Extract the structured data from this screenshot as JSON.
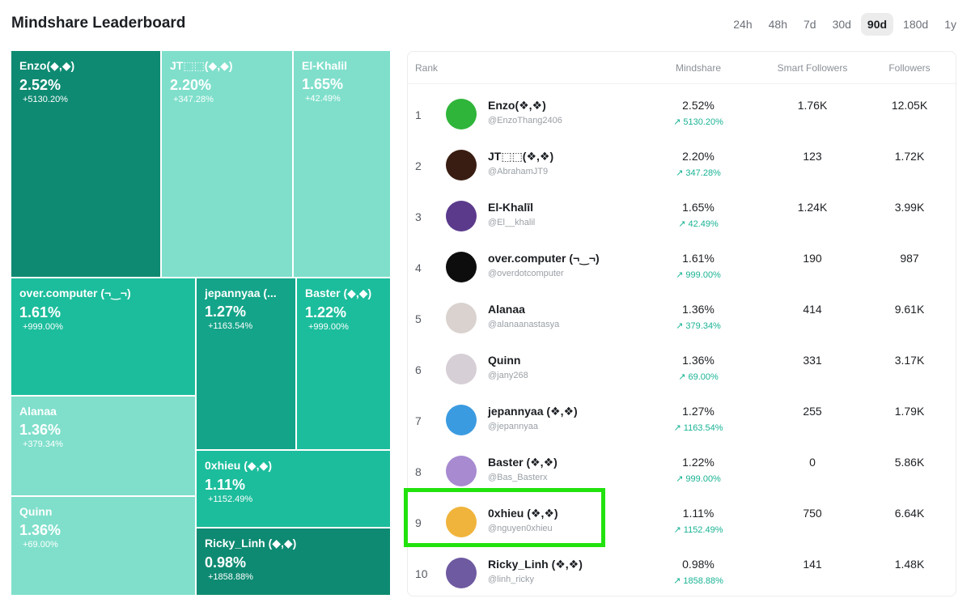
{
  "header": {
    "title": "Mindshare Leaderboard",
    "ranges": [
      "24h",
      "48h",
      "7d",
      "30d",
      "90d",
      "180d",
      "1y"
    ],
    "active_range": "90d"
  },
  "treemap": {
    "tiles": [
      {
        "name": "Enzo(◆,◆)",
        "pct": "2.52%",
        "change": "+5130.20%"
      },
      {
        "name": "JT⬚⬚(◆,◆)",
        "pct": "2.20%",
        "change": "+347.28%"
      },
      {
        "name": "El-Khalil",
        "pct": "1.65%",
        "change": "+42.49%"
      },
      {
        "name": "over.computer (¬‿¬)",
        "pct": "1.61%",
        "change": "+999.00%"
      },
      {
        "name": "jepannyaa (...",
        "pct": "1.27%",
        "change": "+1163.54%"
      },
      {
        "name": "Baster (◆,◆)",
        "pct": "1.22%",
        "change": "+999.00%"
      },
      {
        "name": "Alanaa",
        "pct": "1.36%",
        "change": "+379.34%"
      },
      {
        "name": "0xhieu (◆,◆)",
        "pct": "1.11%",
        "change": "+1152.49%"
      },
      {
        "name": "Quinn",
        "pct": "1.36%",
        "change": "+69.00%"
      },
      {
        "name": "Ricky_Linh (◆,◆)",
        "pct": "0.98%",
        "change": "+1858.88%"
      }
    ]
  },
  "table": {
    "headers": {
      "rank": "Rank",
      "mindshare": "Mindshare",
      "smart": "Smart Followers",
      "followers": "Followers"
    },
    "rows": [
      {
        "rank": "1",
        "name": "Enzo(❖,❖)",
        "handle": "@EnzoThang2406",
        "pct": "2.52%",
        "change": "↗ 5130.20%",
        "smart": "1.76K",
        "followers": "12.05K",
        "avatar_color": "#2fb53a"
      },
      {
        "rank": "2",
        "name": "JT⬚⬚(❖,❖)",
        "handle": "@AbrahamJT9",
        "pct": "2.20%",
        "change": "↗ 347.28%",
        "smart": "123",
        "followers": "1.72K",
        "avatar_color": "#3a1d12"
      },
      {
        "rank": "3",
        "name": "El-Khalīl",
        "handle": "@El__khalil",
        "pct": "1.65%",
        "change": "↗ 42.49%",
        "smart": "1.24K",
        "followers": "3.99K",
        "avatar_color": "#5b3a8c"
      },
      {
        "rank": "4",
        "name": "over.computer (¬‿¬)",
        "handle": "@overdotcomputer",
        "pct": "1.61%",
        "change": "↗ 999.00%",
        "smart": "190",
        "followers": "987",
        "avatar_color": "#0d0d0d"
      },
      {
        "rank": "5",
        "name": "Alanaa",
        "handle": "@alanaanastasya",
        "pct": "1.36%",
        "change": "↗ 379.34%",
        "smart": "414",
        "followers": "9.61K",
        "avatar_color": "#d9d2cf"
      },
      {
        "rank": "6",
        "name": "Quinn",
        "handle": "@jany268",
        "pct": "1.36%",
        "change": "↗ 69.00%",
        "smart": "331",
        "followers": "3.17K",
        "avatar_color": "#d6cfd6"
      },
      {
        "rank": "7",
        "name": "jepannyaa (❖,❖)",
        "handle": "@jepannyaa",
        "pct": "1.27%",
        "change": "↗ 1163.54%",
        "smart": "255",
        "followers": "1.79K",
        "avatar_color": "#3b9be0"
      },
      {
        "rank": "8",
        "name": "Baster (❖,❖)",
        "handle": "@Bas_Basterx",
        "pct": "1.22%",
        "change": "↗ 999.00%",
        "smart": "0",
        "followers": "5.86K",
        "avatar_color": "#a78ad0"
      },
      {
        "rank": "9",
        "name": "0xhieu (❖,❖)",
        "handle": "@nguyen0xhieu",
        "pct": "1.11%",
        "change": "↗ 1152.49%",
        "smart": "750",
        "followers": "6.64K",
        "avatar_color": "#f0b43c"
      },
      {
        "rank": "10",
        "name": "Ricky_Linh (❖,❖)",
        "handle": "@linh_ricky",
        "pct": "0.98%",
        "change": "↗ 1858.88%",
        "smart": "141",
        "followers": "1.48K",
        "avatar_color": "#6e5aa0"
      }
    ]
  },
  "colors": {
    "tile_dark": "#0e8a72",
    "tile_light": "#7fdfcb",
    "tile_mid": "#1cbd9c",
    "change_green": "#19b394",
    "highlight": "#22e20e"
  }
}
